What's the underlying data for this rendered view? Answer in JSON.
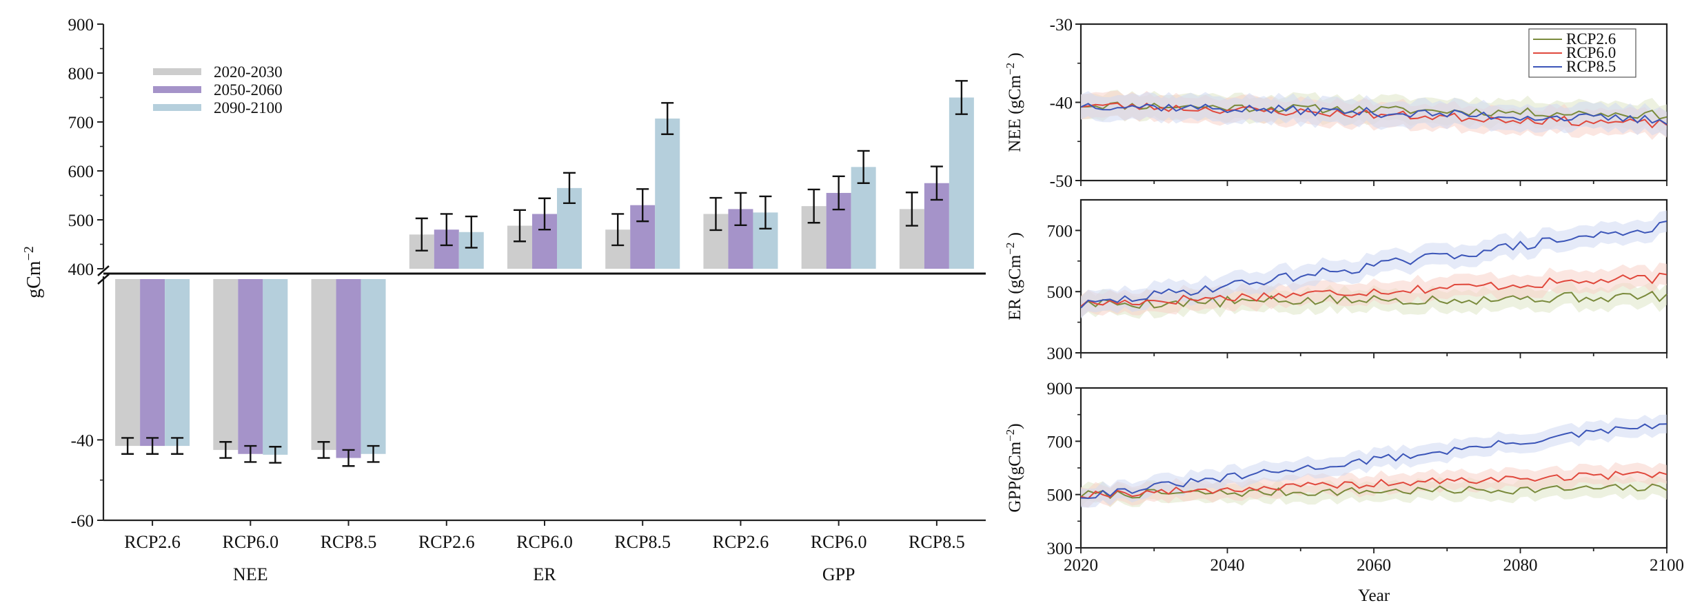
{
  "chart_data": [
    {
      "type": "bar",
      "title": "",
      "ylabel": "gCm−2",
      "ylabel_parts": {
        "base": "gCm",
        "exponent": "−2"
      },
      "axis_break": true,
      "upper_panel": {
        "ylim": [
          400,
          900
        ],
        "ticks": [
          "900",
          "800",
          "700",
          "600",
          "500",
          "400"
        ]
      },
      "lower_panel": {
        "ylim": [
          -60,
          0
        ],
        "ticks": [
          "-40",
          "-60"
        ]
      },
      "legend": {
        "position": "top-left",
        "entries": [
          "2020-2030",
          "2050-2060",
          "2090-2100"
        ]
      },
      "colors": {
        "2020-2030": "#cdcdcd",
        "2050-2060": "#a593c9",
        "2090-2100": "#b5cfdc",
        "error_bar": "#111111"
      },
      "groups": [
        {
          "name": "NEE",
          "categories": [
            "RCP2.6",
            "RCP6.0",
            "RCP8.5"
          ]
        },
        {
          "name": "ER",
          "categories": [
            "RCP2.6",
            "RCP6.0",
            "RCP8.5"
          ]
        },
        {
          "name": "GPP",
          "categories": [
            "RCP2.6",
            "RCP6.0",
            "RCP8.5"
          ]
        }
      ],
      "series": [
        {
          "name": "2020-2030",
          "values": [
            -41.5,
            -42.5,
            -42.5,
            470,
            488,
            480,
            512,
            528,
            522
          ],
          "errors": [
            2.0,
            2.0,
            2.0,
            33,
            32,
            32,
            33,
            34,
            34
          ]
        },
        {
          "name": "2050-2060",
          "values": [
            -41.5,
            -43.5,
            -44.5,
            480,
            512,
            530,
            522,
            555,
            575
          ],
          "errors": [
            2.0,
            2.0,
            2.0,
            32,
            32,
            33,
            33,
            34,
            34
          ]
        },
        {
          "name": "2090-2100",
          "values": [
            -41.5,
            -43.7,
            -43.5,
            475,
            565,
            707,
            515,
            608,
            750
          ],
          "errors": [
            2.0,
            2.0,
            2.0,
            32,
            31,
            32,
            33,
            33,
            34
          ]
        }
      ]
    },
    {
      "type": "line",
      "ylabel": "NEE (gCm−2 )",
      "ylabel_parts": {
        "base": "NEE (gCm",
        "exponent": "−2",
        "close": " )"
      },
      "ylim": [
        -50,
        -30
      ],
      "yticks": [
        "-30",
        "-40",
        "-50"
      ],
      "xlim": [
        2020,
        2100
      ],
      "legend": {
        "position": "top-right",
        "entries": [
          "RCP2.6",
          "RCP6.0",
          "RCP8.5"
        ]
      },
      "series_trends": [
        {
          "name": "RCP2.6",
          "start": -40.3,
          "end": -41.6,
          "noise": 0.55,
          "band": 1.6,
          "seed": 11
        },
        {
          "name": "RCP6.0",
          "start": -40.3,
          "end": -42.8,
          "noise": 0.55,
          "band": 1.6,
          "seed": 23
        },
        {
          "name": "RCP8.5",
          "start": -40.3,
          "end": -42.3,
          "noise": 0.6,
          "band": 1.6,
          "seed": 37
        }
      ]
    },
    {
      "type": "line",
      "ylabel": "ER (gCm−2 )",
      "ylabel_parts": {
        "base": "ER (gCm",
        "exponent": "−2",
        "close": " )"
      },
      "ylim": [
        300,
        800
      ],
      "yticks": [
        "700",
        "500",
        "300"
      ],
      "xlim": [
        2020,
        2100
      ],
      "series_trends": [
        {
          "name": "RCP2.6",
          "start": 460,
          "end": 485,
          "noise": 18,
          "band": 35,
          "seed": 5
        },
        {
          "name": "RCP6.0",
          "start": 460,
          "end": 545,
          "noise": 16,
          "band": 35,
          "seed": 17
        },
        {
          "name": "RCP8.5",
          "start": 455,
          "end": 715,
          "noise": 16,
          "band": 35,
          "seed": 29
        }
      ]
    },
    {
      "type": "line",
      "ylabel": "GPP(gCm−2)",
      "ylabel_parts": {
        "base": "GPP(gCm",
        "exponent": "−2",
        "close": ")"
      },
      "ylim": [
        300,
        900
      ],
      "yticks": [
        "900",
        "700",
        "500",
        "300"
      ],
      "xlim": [
        2020,
        2100
      ],
      "xticks": [
        "2020",
        "2040",
        "2060",
        "2080",
        "2100"
      ],
      "xlabel": "Year",
      "series_trends": [
        {
          "name": "RCP2.6",
          "start": 500,
          "end": 525,
          "noise": 16,
          "band": 35,
          "seed": 7
        },
        {
          "name": "RCP6.0",
          "start": 500,
          "end": 580,
          "noise": 15,
          "band": 35,
          "seed": 19
        },
        {
          "name": "RCP8.5",
          "start": 495,
          "end": 765,
          "noise": 15,
          "band": 35,
          "seed": 31
        }
      ]
    }
  ],
  "line_colors": {
    "RCP2.6": "#7a8a3c",
    "RCP6.0": "#e0483c",
    "RCP8.5": "#3b55b8"
  },
  "band_colors": {
    "RCP2.6": "#dfe6c6",
    "RCP6.0": "#f7d2c9",
    "RCP8.5": "#cfd8f2"
  }
}
